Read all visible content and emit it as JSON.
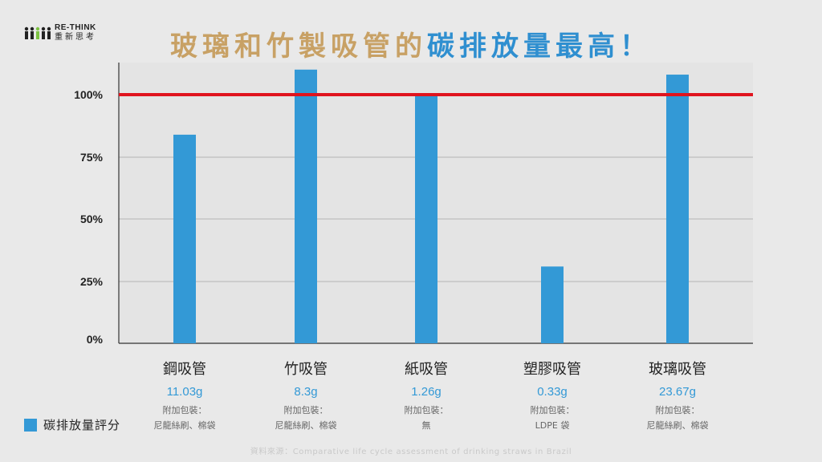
{
  "logo": {
    "brand_en": "RE-THINK",
    "brand_zh": "重新思考"
  },
  "title": {
    "part1": "玻璃和竹製吸管的",
    "part2": "碳排放量最高！"
  },
  "chart_data": {
    "type": "bar",
    "categories": [
      "鋼吸管",
      "竹吸管",
      "紙吸管",
      "塑膠吸管",
      "玻璃吸管"
    ],
    "series": [
      {
        "name": "碳排放量評分",
        "color": "#3399d6",
        "values": [
          84,
          110,
          100,
          31,
          108
        ]
      }
    ],
    "yticks": [
      "0%",
      "25%",
      "50%",
      "75%",
      "100%"
    ],
    "ylim": [
      0,
      110
    ],
    "reference_line": {
      "value": 100,
      "color": "#e0141e"
    },
    "grid": true,
    "category_details": [
      {
        "weight": "11.03g",
        "packaging_label": "附加包裝：",
        "packaging": "尼龍絲刷、棉袋"
      },
      {
        "weight": "8.3g",
        "packaging_label": "附加包裝：",
        "packaging": "尼龍絲刷、棉袋"
      },
      {
        "weight": "1.26g",
        "packaging_label": "附加包裝：",
        "packaging": "無"
      },
      {
        "weight": "0.33g",
        "packaging_label": "附加包裝：",
        "packaging": "LDPE 袋"
      },
      {
        "weight": "23.67g",
        "packaging_label": "附加包裝：",
        "packaging": "尼龍絲刷、棉袋"
      }
    ],
    "legend": {
      "label": "碳排放量評分",
      "position": "bottom-left"
    }
  },
  "source": "資料來源：Comparative life cycle assessment of drinking straws in Brazil"
}
